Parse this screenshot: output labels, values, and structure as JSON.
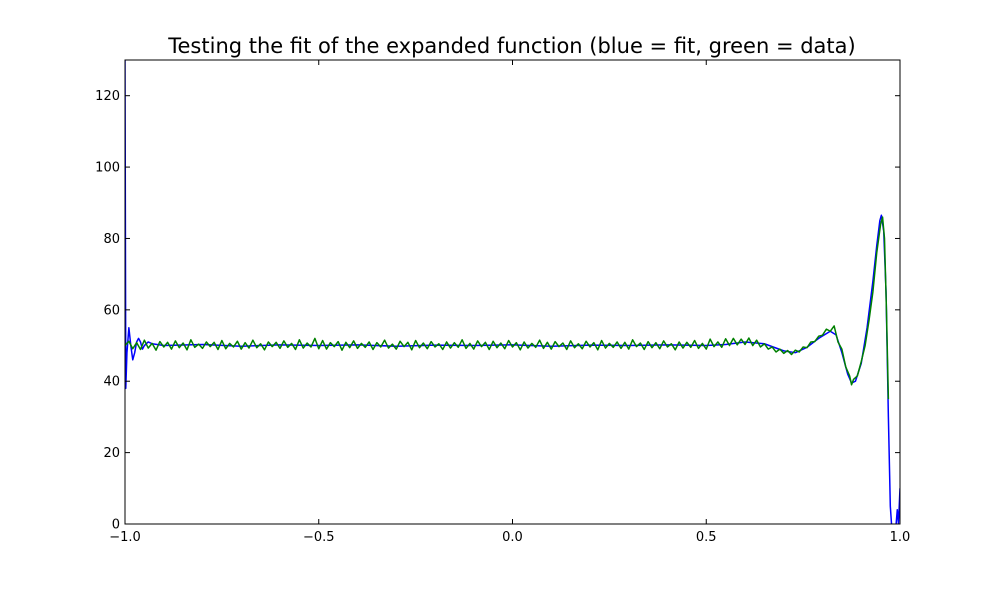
{
  "chart_data": {
    "type": "line",
    "title": "Testing the fit of the expanded function (blue = fit, green = data)",
    "xlabel": "",
    "ylabel": "",
    "xlim": [
      -1.0,
      1.0
    ],
    "ylim": [
      0,
      130
    ],
    "x_ticks": [
      -1.0,
      -0.5,
      0.0,
      0.5,
      1.0
    ],
    "x_tick_labels": [
      "−1.0",
      "−0.5",
      "0.0",
      "0.5",
      "1.0"
    ],
    "y_ticks": [
      0,
      20,
      40,
      60,
      80,
      100,
      120
    ],
    "y_tick_labels": [
      "0",
      "20",
      "40",
      "60",
      "80",
      "100",
      "120"
    ],
    "grid": false,
    "legend": "none",
    "series": [
      {
        "color": "#0000ff",
        "points": [
          [
            -1.0,
            130
          ],
          [
            -0.998,
            38
          ],
          [
            -0.995,
            48
          ],
          [
            -0.99,
            55
          ],
          [
            -0.985,
            50
          ],
          [
            -0.98,
            46
          ],
          [
            -0.975,
            48
          ],
          [
            -0.97,
            51
          ],
          [
            -0.965,
            52
          ],
          [
            -0.96,
            51
          ],
          [
            -0.955,
            49
          ],
          [
            -0.95,
            50
          ],
          [
            -0.94,
            51
          ],
          [
            -0.93,
            50.5
          ],
          [
            -0.9,
            50
          ],
          [
            -0.8,
            50.3
          ],
          [
            -0.7,
            49.8
          ],
          [
            -0.6,
            50.2
          ],
          [
            -0.5,
            50.0
          ],
          [
            -0.4,
            50.2
          ],
          [
            -0.3,
            49.8
          ],
          [
            -0.2,
            50.1
          ],
          [
            -0.1,
            50.0
          ],
          [
            0.0,
            50.2
          ],
          [
            0.1,
            49.8
          ],
          [
            0.2,
            50.1
          ],
          [
            0.3,
            50.0
          ],
          [
            0.4,
            50.2
          ],
          [
            0.5,
            50.0
          ],
          [
            0.55,
            50.3
          ],
          [
            0.6,
            51.0
          ],
          [
            0.65,
            50.5
          ],
          [
            0.7,
            48.5
          ],
          [
            0.73,
            48.0
          ],
          [
            0.76,
            49.5
          ],
          [
            0.79,
            52.0
          ],
          [
            0.82,
            54.0
          ],
          [
            0.835,
            53.0
          ],
          [
            0.85,
            48.0
          ],
          [
            0.865,
            42.0
          ],
          [
            0.875,
            39.5
          ],
          [
            0.885,
            40.0
          ],
          [
            0.9,
            45.0
          ],
          [
            0.915,
            55.0
          ],
          [
            0.93,
            68.0
          ],
          [
            0.94,
            78.0
          ],
          [
            0.948,
            85.0
          ],
          [
            0.952,
            86.5
          ],
          [
            0.958,
            82.0
          ],
          [
            0.964,
            65.0
          ],
          [
            0.97,
            30.0
          ],
          [
            0.975,
            5.0
          ],
          [
            0.98,
            -3.0
          ],
          [
            0.985,
            -2.0
          ],
          [
            0.99,
            0.0
          ],
          [
            0.993,
            4.0
          ],
          [
            0.996,
            0.0
          ],
          [
            1.0,
            10.0
          ]
        ]
      },
      {
        "color": "#008000",
        "points": [
          [
            -1.0,
            50.0
          ],
          [
            -0.99,
            51.2
          ],
          [
            -0.98,
            49.1
          ],
          [
            -0.97,
            50.8
          ],
          [
            -0.96,
            48.9
          ],
          [
            -0.95,
            51.5
          ],
          [
            -0.94,
            49.3
          ],
          [
            -0.93,
            50.6
          ],
          [
            -0.92,
            48.7
          ],
          [
            -0.91,
            51.1
          ],
          [
            -0.9,
            49.6
          ],
          [
            -0.89,
            50.9
          ],
          [
            -0.88,
            49.0
          ],
          [
            -0.87,
            51.3
          ],
          [
            -0.86,
            49.4
          ],
          [
            -0.85,
            50.7
          ],
          [
            -0.84,
            48.8
          ],
          [
            -0.83,
            51.6
          ],
          [
            -0.82,
            49.5
          ],
          [
            -0.81,
            50.4
          ],
          [
            -0.8,
            49.2
          ],
          [
            -0.79,
            51.0
          ],
          [
            -0.78,
            49.7
          ],
          [
            -0.77,
            50.9
          ],
          [
            -0.76,
            48.9
          ],
          [
            -0.75,
            51.4
          ],
          [
            -0.74,
            49.1
          ],
          [
            -0.73,
            50.6
          ],
          [
            -0.72,
            49.6
          ],
          [
            -0.71,
            51.2
          ],
          [
            -0.7,
            49.0
          ],
          [
            -0.69,
            50.8
          ],
          [
            -0.68,
            49.3
          ],
          [
            -0.67,
            51.5
          ],
          [
            -0.66,
            49.4
          ],
          [
            -0.65,
            50.5
          ],
          [
            -0.64,
            48.8
          ],
          [
            -0.63,
            51.0
          ],
          [
            -0.62,
            49.7
          ],
          [
            -0.61,
            50.9
          ],
          [
            -0.6,
            49.2
          ],
          [
            -0.59,
            51.3
          ],
          [
            -0.58,
            49.5
          ],
          [
            -0.57,
            50.6
          ],
          [
            -0.56,
            48.9
          ],
          [
            -0.55,
            51.6
          ],
          [
            -0.54,
            49.3
          ],
          [
            -0.53,
            50.7
          ],
          [
            -0.52,
            49.6
          ],
          [
            -0.51,
            52.0
          ],
          [
            -0.5,
            49.1
          ],
          [
            -0.49,
            51.4
          ],
          [
            -0.48,
            49.0
          ],
          [
            -0.47,
            50.8
          ],
          [
            -0.46,
            49.7
          ],
          [
            -0.45,
            51.1
          ],
          [
            -0.44,
            48.7
          ],
          [
            -0.43,
            50.9
          ],
          [
            -0.42,
            49.4
          ],
          [
            -0.41,
            51.3
          ],
          [
            -0.4,
            49.2
          ],
          [
            -0.39,
            50.6
          ],
          [
            -0.38,
            49.5
          ],
          [
            -0.37,
            51.0
          ],
          [
            -0.36,
            48.9
          ],
          [
            -0.35,
            50.8
          ],
          [
            -0.34,
            49.6
          ],
          [
            -0.33,
            51.5
          ],
          [
            -0.32,
            49.3
          ],
          [
            -0.31,
            50.4
          ],
          [
            -0.3,
            49.0
          ],
          [
            -0.29,
            51.2
          ],
          [
            -0.28,
            49.7
          ],
          [
            -0.27,
            50.9
          ],
          [
            -0.26,
            48.8
          ],
          [
            -0.25,
            51.4
          ],
          [
            -0.24,
            49.4
          ],
          [
            -0.23,
            50.7
          ],
          [
            -0.22,
            49.1
          ],
          [
            -0.21,
            51.1
          ],
          [
            -0.2,
            49.6
          ],
          [
            -0.19,
            50.5
          ],
          [
            -0.18,
            48.9
          ],
          [
            -0.17,
            51.0
          ],
          [
            -0.16,
            49.3
          ],
          [
            -0.15,
            50.8
          ],
          [
            -0.14,
            49.5
          ],
          [
            -0.13,
            51.6
          ],
          [
            -0.12,
            49.2
          ],
          [
            -0.11,
            50.6
          ],
          [
            -0.1,
            49.0
          ],
          [
            -0.09,
            51.3
          ],
          [
            -0.08,
            49.7
          ],
          [
            -0.07,
            50.9
          ],
          [
            -0.06,
            48.9
          ],
          [
            -0.05,
            51.2
          ],
          [
            -0.04,
            49.4
          ],
          [
            -0.03,
            50.7
          ],
          [
            -0.02,
            49.1
          ],
          [
            -0.01,
            51.4
          ],
          [
            0.0,
            49.6
          ],
          [
            0.01,
            50.8
          ],
          [
            0.02,
            48.8
          ],
          [
            0.03,
            51.0
          ],
          [
            0.04,
            49.3
          ],
          [
            0.05,
            50.6
          ],
          [
            0.06,
            49.5
          ],
          [
            0.07,
            51.5
          ],
          [
            0.08,
            49.2
          ],
          [
            0.09,
            50.9
          ],
          [
            0.1,
            49.0
          ],
          [
            0.11,
            51.1
          ],
          [
            0.12,
            49.7
          ],
          [
            0.13,
            50.7
          ],
          [
            0.14,
            48.9
          ],
          [
            0.15,
            51.3
          ],
          [
            0.16,
            49.4
          ],
          [
            0.17,
            50.5
          ],
          [
            0.18,
            49.1
          ],
          [
            0.19,
            51.2
          ],
          [
            0.2,
            49.6
          ],
          [
            0.21,
            50.8
          ],
          [
            0.22,
            48.8
          ],
          [
            0.23,
            51.4
          ],
          [
            0.24,
            49.3
          ],
          [
            0.25,
            50.6
          ],
          [
            0.26,
            49.5
          ],
          [
            0.27,
            51.0
          ],
          [
            0.28,
            49.2
          ],
          [
            0.29,
            50.9
          ],
          [
            0.3,
            49.0
          ],
          [
            0.31,
            51.6
          ],
          [
            0.32,
            49.7
          ],
          [
            0.33,
            50.7
          ],
          [
            0.34,
            48.9
          ],
          [
            0.35,
            51.1
          ],
          [
            0.36,
            49.4
          ],
          [
            0.37,
            50.8
          ],
          [
            0.38,
            49.1
          ],
          [
            0.39,
            51.3
          ],
          [
            0.4,
            49.6
          ],
          [
            0.41,
            50.5
          ],
          [
            0.42,
            48.8
          ],
          [
            0.43,
            51.0
          ],
          [
            0.44,
            49.3
          ],
          [
            0.45,
            50.9
          ],
          [
            0.46,
            49.5
          ],
          [
            0.47,
            51.4
          ],
          [
            0.48,
            49.2
          ],
          [
            0.49,
            50.6
          ],
          [
            0.5,
            49.0
          ],
          [
            0.51,
            51.8
          ],
          [
            0.52,
            49.7
          ],
          [
            0.53,
            51.0
          ],
          [
            0.54,
            49.5
          ],
          [
            0.55,
            51.9
          ],
          [
            0.56,
            50.0
          ],
          [
            0.57,
            52.0
          ],
          [
            0.58,
            50.2
          ],
          [
            0.59,
            51.8
          ],
          [
            0.6,
            50.3
          ],
          [
            0.61,
            52.1
          ],
          [
            0.62,
            50.0
          ],
          [
            0.63,
            51.5
          ],
          [
            0.64,
            49.6
          ],
          [
            0.65,
            50.5
          ],
          [
            0.66,
            49.0
          ],
          [
            0.67,
            49.6
          ],
          [
            0.68,
            48.2
          ],
          [
            0.69,
            49.0
          ],
          [
            0.7,
            47.8
          ],
          [
            0.71,
            48.6
          ],
          [
            0.72,
            47.5
          ],
          [
            0.73,
            48.7
          ],
          [
            0.74,
            48.2
          ],
          [
            0.75,
            49.6
          ],
          [
            0.76,
            49.4
          ],
          [
            0.77,
            51.0
          ],
          [
            0.78,
            51.1
          ],
          [
            0.79,
            52.6
          ],
          [
            0.8,
            52.9
          ],
          [
            0.81,
            54.6
          ],
          [
            0.82,
            54.0
          ],
          [
            0.83,
            55.5
          ],
          [
            0.84,
            51.0
          ],
          [
            0.85,
            49.0
          ],
          [
            0.86,
            44.0
          ],
          [
            0.87,
            41.5
          ],
          [
            0.875,
            39.0
          ],
          [
            0.88,
            40.5
          ],
          [
            0.89,
            41.5
          ],
          [
            0.9,
            45.5
          ],
          [
            0.91,
            50.0
          ],
          [
            0.92,
            57.0
          ],
          [
            0.93,
            65.0
          ],
          [
            0.94,
            76.0
          ],
          [
            0.95,
            84.0
          ],
          [
            0.955,
            86.0
          ],
          [
            0.96,
            80.0
          ],
          [
            0.965,
            60.0
          ],
          [
            0.97,
            35.0
          ]
        ]
      }
    ]
  }
}
